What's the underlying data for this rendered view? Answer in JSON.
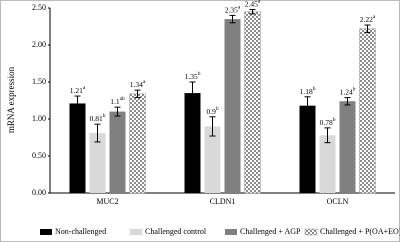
{
  "chart_data": {
    "type": "bar",
    "ylabel": "mRNA expression",
    "categories": [
      "MUC2",
      "CLDN1",
      "OCLN"
    ],
    "ylim": [
      0,
      2.5
    ],
    "yticks": [
      {
        "value": 0,
        "label": "0.00"
      },
      {
        "value": 0.5,
        "label": "0.50"
      },
      {
        "value": 1,
        "label": "1.00"
      },
      {
        "value": 1.5,
        "label": "1.50"
      },
      {
        "value": 2,
        "label": "2.00"
      },
      {
        "value": 2.5,
        "label": "2.50"
      }
    ],
    "legend": "bottom",
    "series": [
      {
        "name": "Non-challenged",
        "color": "#000000",
        "values": [
          1.21,
          1.35,
          1.18
        ],
        "errors": [
          0.1,
          0.15,
          0.12
        ],
        "letters": [
          "a",
          "b",
          "b"
        ]
      },
      {
        "name": "Challenged control",
        "color": "#d9d9d9",
        "values": [
          0.81,
          0.9,
          0.78
        ],
        "errors": [
          0.12,
          0.13,
          0.1
        ],
        "letters": [
          "b",
          "b",
          "b"
        ]
      },
      {
        "name": "Challenged + AGP",
        "color": "#808080",
        "values": [
          1.1,
          2.35,
          1.24
        ],
        "errors": [
          0.06,
          0.05,
          0.05
        ],
        "letters": [
          "ab",
          "a",
          "b"
        ]
      },
      {
        "name": "Challenged + P(OA+EO)",
        "color": "#a0a0a0",
        "pattern": true,
        "values": [
          1.34,
          2.45,
          2.22
        ],
        "errors": [
          0.05,
          0.03,
          0.05
        ],
        "letters": [
          "a",
          "a",
          "a"
        ]
      }
    ]
  }
}
